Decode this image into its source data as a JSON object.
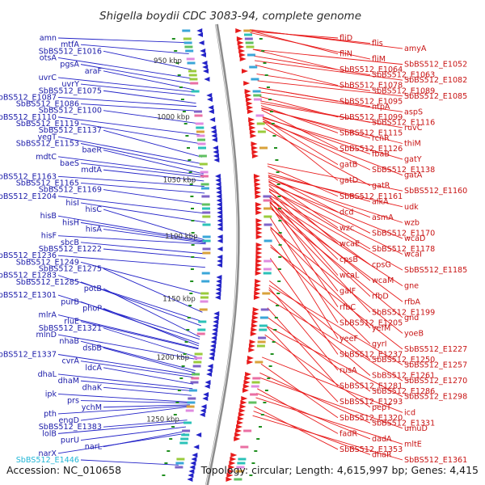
{
  "title": "Shigella boydii CDC 3083-94, complete genome",
  "accession": "Accession: NC_010658",
  "summary": "Topology: circular; Length: 4,615,997 bp; Genes: 4,415",
  "colors": {
    "forward": "#e81b1b",
    "reverse": "#2323c8",
    "backbone": "#8c8c8c",
    "highlight": "#21b6d6",
    "tick": "#1f8f1f"
  },
  "kbp_marks": [
    {
      "label": "950 kbp",
      "pos": 0.07
    },
    {
      "label": "1000 kbp",
      "pos": 0.195
    },
    {
      "label": "1050 kbp",
      "pos": 0.335
    },
    {
      "label": "1100 kbp",
      "pos": 0.46
    },
    {
      "label": "1150 kbp",
      "pos": 0.6
    },
    {
      "label": "1200 kbp",
      "pos": 0.73
    },
    {
      "label": "1250 kbp",
      "pos": 0.868
    }
  ],
  "left_labels": [
    {
      "text": "amn",
      "pos": 0.03
    },
    {
      "text": "mtfA",
      "pos": 0.055
    },
    {
      "text": "SbBS512_E1016",
      "pos": 0.09
    },
    {
      "text": "otsA",
      "pos": 0.11
    },
    {
      "text": "pgsA",
      "pos": 0.122
    },
    {
      "text": "araF",
      "pos": 0.135
    },
    {
      "text": "uvrC",
      "pos": 0.14
    },
    {
      "text": "uvrY",
      "pos": 0.148
    },
    {
      "text": "SbBS512_E1075",
      "pos": 0.165
    },
    {
      "text": "SbBS512_E1087",
      "pos": 0.172
    },
    {
      "text": "SbBS512_E1086",
      "pos": 0.182
    },
    {
      "text": "SbBS512_E1100",
      "pos": 0.21
    },
    {
      "text": "SbBS512_E1110",
      "pos": 0.235
    },
    {
      "text": "SbBS512_E1119",
      "pos": 0.255
    },
    {
      "text": "SbBS512_E1137",
      "pos": 0.285
    },
    {
      "text": "yegT",
      "pos": 0.3
    },
    {
      "text": "SbBS512_E1153",
      "pos": 0.31
    },
    {
      "text": "baeR",
      "pos": 0.322
    },
    {
      "text": "mdtC",
      "pos": 0.325
    },
    {
      "text": "baeS",
      "pos": 0.33
    },
    {
      "text": "mdtA",
      "pos": 0.338
    },
    {
      "text": "SbBS512_E1163",
      "pos": 0.35
    },
    {
      "text": "SbBS512_E1165",
      "pos": 0.365
    },
    {
      "text": "SbBS512_E1169",
      "pos": 0.39
    },
    {
      "text": "SbBS512_E1204",
      "pos": 0.41
    },
    {
      "text": "hisI",
      "pos": 0.43
    },
    {
      "text": "hisC",
      "pos": 0.47
    },
    {
      "text": "hisB",
      "pos": 0.472
    },
    {
      "text": "hisH",
      "pos": 0.474
    },
    {
      "text": "hisA",
      "pos": 0.476
    },
    {
      "text": "hisF",
      "pos": 0.478
    },
    {
      "text": "sbcB",
      "pos": 0.5
    },
    {
      "text": "SbBS512_E1222",
      "pos": 0.51
    },
    {
      "text": "SbBS512_E1236",
      "pos": 0.53
    },
    {
      "text": "SbBS512_E1249",
      "pos": 0.59
    },
    {
      "text": "SbBS512_E1275",
      "pos": 0.63
    },
    {
      "text": "SbBS512_E1283",
      "pos": 0.65
    },
    {
      "text": "SbBS512_E1285",
      "pos": 0.66
    },
    {
      "text": "potB",
      "pos": 0.685
    },
    {
      "text": "SbBS512_E1301",
      "pos": 0.69
    },
    {
      "text": "purB",
      "pos": 0.7
    },
    {
      "text": "phoP",
      "pos": 0.705
    },
    {
      "text": "mlrA",
      "pos": 0.71
    },
    {
      "text": "rluE",
      "pos": 0.712
    },
    {
      "text": "SbBS512_E1321",
      "pos": 0.73
    },
    {
      "text": "mlnD",
      "pos": 0.735
    },
    {
      "text": "nhaB",
      "pos": 0.76
    },
    {
      "text": "dsbB",
      "pos": 0.765
    },
    {
      "text": "SbBS512_E1337",
      "pos": 0.77
    },
    {
      "text": "cvrA",
      "pos": 0.775
    },
    {
      "text": "ldcA",
      "pos": 0.79
    },
    {
      "text": "dhaL",
      "pos": 0.8
    },
    {
      "text": "dhaM",
      "pos": 0.805
    },
    {
      "text": "dhaK",
      "pos": 0.815
    },
    {
      "text": "ipk",
      "pos": 0.83
    },
    {
      "text": "prs",
      "pos": 0.832
    },
    {
      "text": "ychM",
      "pos": 0.836
    },
    {
      "text": "pth",
      "pos": 0.838
    },
    {
      "text": "engD",
      "pos": 0.84
    },
    {
      "text": "SbBS512_E1383",
      "pos": 0.87
    },
    {
      "text": "lolB",
      "pos": 0.875
    },
    {
      "text": "purU",
      "pos": 0.885
    },
    {
      "text": "narL",
      "pos": 0.895
    },
    {
      "text": "narX",
      "pos": 0.9
    },
    {
      "text": "SbBS512_E1446",
      "pos": 0.97,
      "highlight": true
    }
  ],
  "right_labels": [
    {
      "text": "fliD",
      "pos": 0.005
    },
    {
      "text": "flis",
      "pos": 0.002
    },
    {
      "text": "amyA",
      "pos": 0.001
    },
    {
      "text": "fliN",
      "pos": 0.003
    },
    {
      "text": "fliM",
      "pos": 0.008
    },
    {
      "text": "SbBS512_E1052",
      "pos": 0.045
    },
    {
      "text": "SbBS512_E1064",
      "pos": 0.045
    },
    {
      "text": "SbBS512_E1063",
      "pos": 0.06
    },
    {
      "text": "SbBS512_E1082",
      "pos": 0.07
    },
    {
      "text": "SbBS512_E1078",
      "pos": 0.08
    },
    {
      "text": "SbBS512_E1089",
      "pos": 0.1
    },
    {
      "text": "SbBS512_E1085",
      "pos": 0.115
    },
    {
      "text": "SbBS512_E1095",
      "pos": 0.13
    },
    {
      "text": "ntpA",
      "pos": 0.13
    },
    {
      "text": "aspS",
      "pos": 0.14
    },
    {
      "text": "SbBS512_E1099",
      "pos": 0.15
    },
    {
      "text": "SbBS512_E1116",
      "pos": 0.16
    },
    {
      "text": "ruvC",
      "pos": 0.165
    },
    {
      "text": "SbBS512_E1115",
      "pos": 0.17
    },
    {
      "text": "rcnR",
      "pos": 0.175
    },
    {
      "text": "thiM",
      "pos": 0.177
    },
    {
      "text": "SbBS512_E1126",
      "pos": 0.18
    },
    {
      "text": "fbaB",
      "pos": 0.195
    },
    {
      "text": "gatY",
      "pos": 0.197
    },
    {
      "text": "gatB",
      "pos": 0.2
    },
    {
      "text": "SbBS512_E1138",
      "pos": 0.2
    },
    {
      "text": "gatA",
      "pos": 0.205
    },
    {
      "text": "gatD",
      "pos": 0.205
    },
    {
      "text": "gatR",
      "pos": 0.22
    },
    {
      "text": "SbBS512_E1160",
      "pos": 0.3
    },
    {
      "text": "SbBS512_E1161",
      "pos": 0.305
    },
    {
      "text": "alkA",
      "pos": 0.32
    },
    {
      "text": "udk",
      "pos": 0.325
    },
    {
      "text": "dcd",
      "pos": 0.327
    },
    {
      "text": "asmA",
      "pos": 0.33
    },
    {
      "text": "wzb",
      "pos": 0.335
    },
    {
      "text": "wzc",
      "pos": 0.338
    },
    {
      "text": "SbBS512_E1170",
      "pos": 0.34
    },
    {
      "text": "wcaD",
      "pos": 0.345
    },
    {
      "text": "wcaE",
      "pos": 0.348
    },
    {
      "text": "SbBS512_E1178",
      "pos": 0.355
    },
    {
      "text": "wcaI",
      "pos": 0.357
    },
    {
      "text": "cpsB",
      "pos": 0.36
    },
    {
      "text": "cpsG",
      "pos": 0.362
    },
    {
      "text": "SbBS512_E1185",
      "pos": 0.37
    },
    {
      "text": "wcaL",
      "pos": 0.372
    },
    {
      "text": "wcaM",
      "pos": 0.375
    },
    {
      "text": "gne",
      "pos": 0.38
    },
    {
      "text": "galF",
      "pos": 0.382
    },
    {
      "text": "rfbD",
      "pos": 0.385
    },
    {
      "text": "rfbA",
      "pos": 0.387
    },
    {
      "text": "rfbC",
      "pos": 0.39
    },
    {
      "text": "SbBS512_E1199",
      "pos": 0.395
    },
    {
      "text": "gnd",
      "pos": 0.398
    },
    {
      "text": "SbBS512_E1205",
      "pos": 0.42
    },
    {
      "text": "yefM",
      "pos": 0.44
    },
    {
      "text": "yoeB",
      "pos": 0.442
    },
    {
      "text": "yeeF",
      "pos": 0.445
    },
    {
      "text": "gyrI",
      "pos": 0.48
    },
    {
      "text": "SbBS512_E1227",
      "pos": 0.485
    },
    {
      "text": "SbBS512_E1237",
      "pos": 0.51
    },
    {
      "text": "SbBS512_E1250",
      "pos": 0.56
    },
    {
      "text": "SbBS512_E1257",
      "pos": 0.57
    },
    {
      "text": "rusA",
      "pos": 0.575
    },
    {
      "text": "SbBS512_E1261",
      "pos": 0.58
    },
    {
      "text": "SbBS512_E1270",
      "pos": 0.6
    },
    {
      "text": "SbBS512_E1281",
      "pos": 0.62
    },
    {
      "text": "SbBS512_E1286",
      "pos": 0.64
    },
    {
      "text": "SbBS512_E1298",
      "pos": 0.66
    },
    {
      "text": "SbBS512_E1293",
      "pos": 0.66
    },
    {
      "text": "pepT",
      "pos": 0.68
    },
    {
      "text": "icd",
      "pos": 0.73
    },
    {
      "text": "SbBS512_E1320",
      "pos": 0.745
    },
    {
      "text": "SbBS512_E1331",
      "pos": 0.765
    },
    {
      "text": "umuD",
      "pos": 0.775
    },
    {
      "text": "fadR",
      "pos": 0.8
    },
    {
      "text": "dadA",
      "pos": 0.81
    },
    {
      "text": "mltE",
      "pos": 0.82
    },
    {
      "text": "SbBS512_E1353",
      "pos": 0.84
    },
    {
      "text": "dhaR",
      "pos": 0.85
    },
    {
      "text": "SbBS512_E1361",
      "pos": 0.86
    }
  ]
}
